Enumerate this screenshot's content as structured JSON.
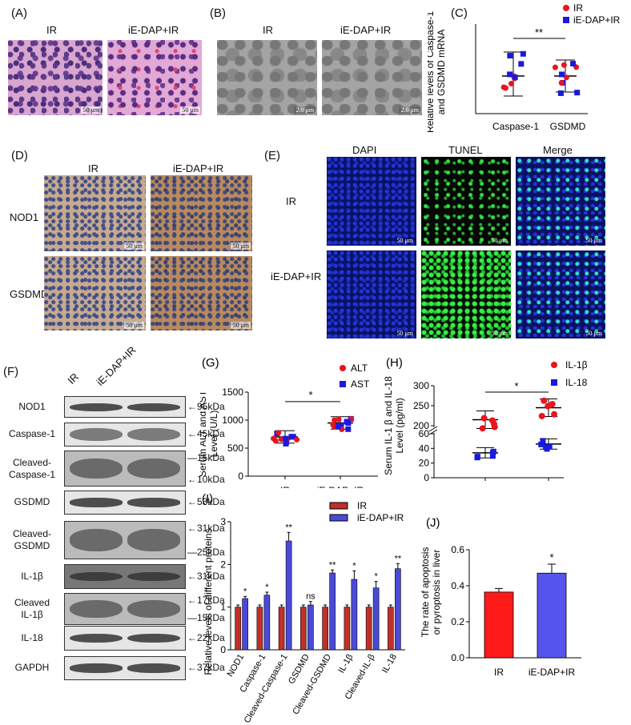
{
  "panels": {
    "A": {
      "label": "(A)",
      "conditions": [
        "IR",
        "iE-DAP+IR"
      ],
      "scalebar": "50 μm"
    },
    "B": {
      "label": "(B)",
      "conditions": [
        "IR",
        "iE-DAP+IR"
      ],
      "scalebar": "2.0 μm"
    },
    "C": {
      "label": "(C)"
    },
    "D": {
      "label": "(D)",
      "conditions": [
        "IR",
        "iE-DAP+IR"
      ],
      "rows": [
        "NOD1",
        "GSDMD"
      ],
      "scalebar": "50 μm"
    },
    "E": {
      "label": "(E)",
      "columns": [
        "DAPI",
        "TUNEL",
        "Merge"
      ],
      "rows": [
        "IR",
        "iE-DAP+IR"
      ],
      "scalebar": "50 μm"
    },
    "F": {
      "label": "(F)",
      "lanes": [
        "IR",
        "iE-DAP+IR"
      ],
      "blots": [
        {
          "name": "NOD1",
          "markers": [
            "←95kDa"
          ]
        },
        {
          "name": "Caspase-1",
          "markers": [
            "←45kDa"
          ]
        },
        {
          "name": "Cleaved-\nCaspase-1",
          "markers": [
            "—15kDa",
            "←10kDa"
          ]
        },
        {
          "name": "GSDMD",
          "markers": [
            "←53kDa"
          ]
        },
        {
          "name": "Cleaved-\nGSDMD",
          "markers": [
            "←31kDa",
            "—25kDa"
          ]
        },
        {
          "name": "IL-1β",
          "markers": [
            "←31kDa"
          ]
        },
        {
          "name": "Cleaved\nIL-1β",
          "markers": [
            "←17kDa",
            "—15kDa"
          ]
        },
        {
          "name": "IL-18",
          "markers": [
            "←22kDa"
          ]
        },
        {
          "name": "GAPDH",
          "markers": [
            "←37kDa"
          ]
        }
      ]
    },
    "G": {
      "label": "(G)"
    },
    "H": {
      "label": "(H)"
    },
    "I": {
      "label": "(I)"
    },
    "J": {
      "label": "(J)"
    }
  },
  "colors": {
    "ir": "#e8141e",
    "ie": "#1a1adc",
    "ir_bar": "#c0302a",
    "ie_bar": "#4a4ad8",
    "red_bar": "#ff1a1a",
    "blue_bar": "#5555ee"
  },
  "chart_data": [
    {
      "id": "C",
      "type": "scatter",
      "ylabel": "Relative levels of Caspase-1\nand GSDMD mRNA",
      "categories": [
        "Caspase-1",
        "GSDMD"
      ],
      "series": [
        {
          "name": "IR",
          "marker": "circle"
        },
        {
          "name": "iE-DAP+IR",
          "marker": "square"
        }
      ],
      "significance": "**"
    },
    {
      "id": "G",
      "type": "scatter",
      "ylabel": "Serum ALT and AST\nLevel (U/L)",
      "categories": [
        "IR",
        "iE-DAP+IR"
      ],
      "ylim": [
        0,
        1500
      ],
      "yticks": [
        0,
        500,
        1000,
        1500
      ],
      "series": [
        {
          "name": "ALT",
          "marker": "circle"
        },
        {
          "name": "AST",
          "marker": "square"
        }
      ],
      "means": [
        700,
        950
      ],
      "significance": "*"
    },
    {
      "id": "H",
      "type": "scatter",
      "ylabel": "Serum IL-1 β and IL-18\nLevel (pg/ml)",
      "categories": [
        "IR",
        "iE-DAP+IR"
      ],
      "yticks_low": [
        0,
        20,
        40,
        60
      ],
      "yticks_high": [
        200,
        250,
        300
      ],
      "series": [
        {
          "name": "IL-1β",
          "marker": "circle",
          "means": [
            215,
            245
          ]
        },
        {
          "name": "IL-18",
          "marker": "square",
          "means": [
            34,
            46
          ]
        }
      ],
      "significance": "*"
    },
    {
      "id": "I",
      "type": "bar",
      "ylabel": "Relative levels of different proteins",
      "categories": [
        "NOD1",
        "Caspase-1",
        "Cleaved-Caspase-1",
        "GSDMD",
        "Cleaved-GSDMD",
        "IL-1β",
        "Cleaved-IL-β",
        "IL-18"
      ],
      "ylim": [
        0,
        3
      ],
      "yticks": [
        0,
        1,
        2,
        3
      ],
      "series": [
        {
          "name": "IR",
          "values": [
            1,
            1,
            1,
            1,
            1,
            1,
            1,
            1
          ]
        },
        {
          "name": "iE-DAP+IR",
          "values": [
            1.2,
            1.28,
            2.55,
            1.05,
            1.8,
            1.65,
            1.45,
            1.9
          ]
        }
      ],
      "errors": [
        0.05,
        0.07,
        0.2,
        0.08,
        0.07,
        0.2,
        0.15,
        0.12
      ],
      "significance": [
        "*",
        "*",
        "**",
        "ns",
        "**",
        "*",
        "*",
        "**"
      ]
    },
    {
      "id": "J",
      "type": "bar",
      "ylabel": "The rate of apoptosis\nor pyroptosis in liver",
      "categories": [
        "IR",
        "iE-DAP+IR"
      ],
      "ylim": [
        0,
        0.6
      ],
      "yticks": [
        "0.0",
        "0.2",
        "0.4",
        "0.6"
      ],
      "values": [
        0.365,
        0.47
      ],
      "errors": [
        0.02,
        0.05
      ],
      "significance": "*"
    }
  ]
}
